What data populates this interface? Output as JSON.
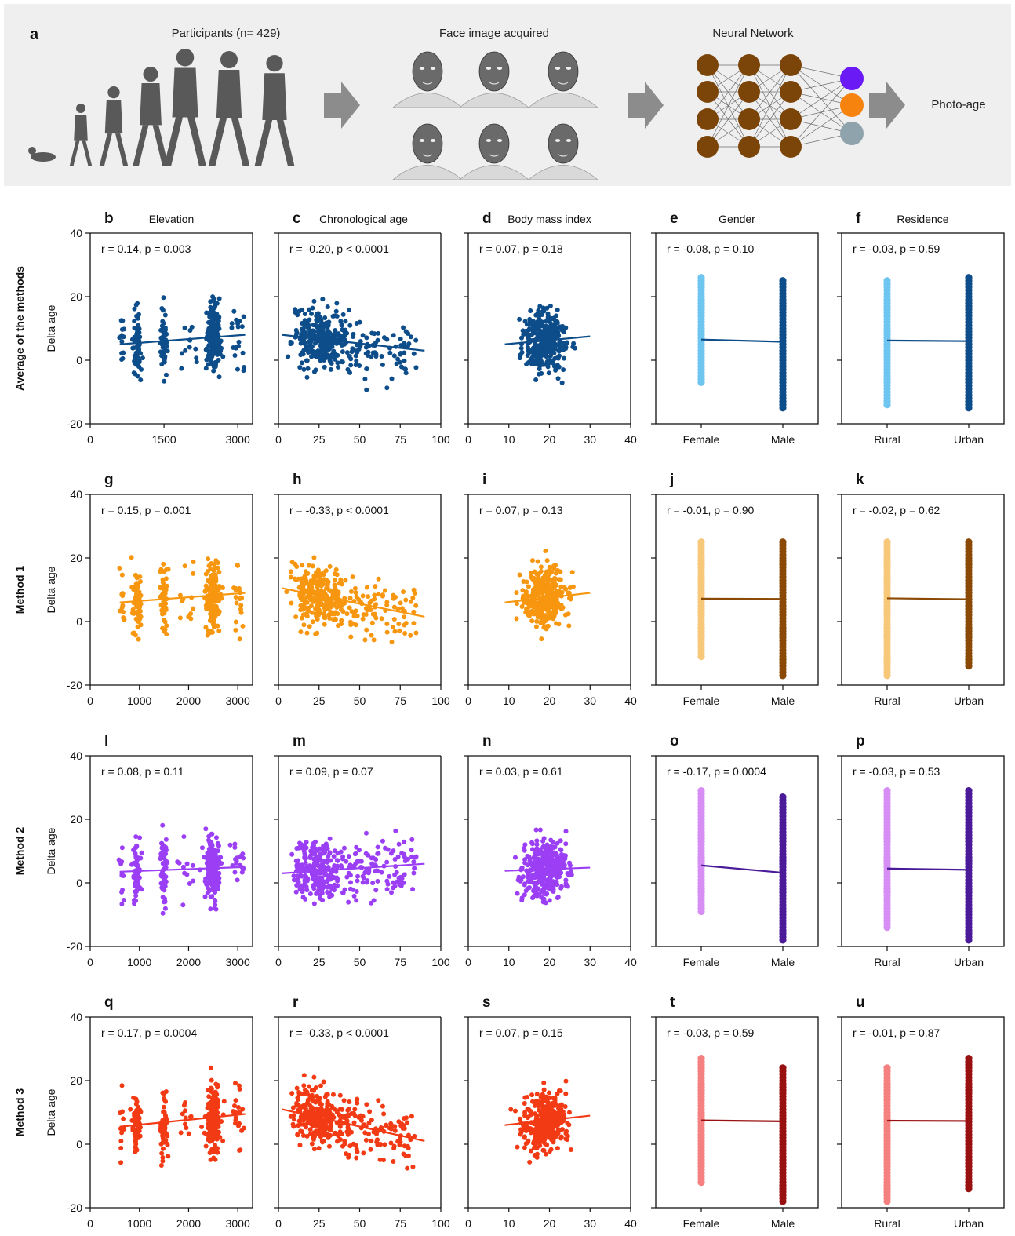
{
  "header": {
    "panel_letter": "a",
    "participants_label": "Participants (n= 429)",
    "faces_label": "Face image acquired",
    "network_label": "Neural Network",
    "output_label": "Photo-age"
  },
  "columns": [
    {
      "key": "elevation",
      "title": "Elevation"
    },
    {
      "key": "age",
      "title": "Chronological age"
    },
    {
      "key": "bmi",
      "title": "Body mass index"
    },
    {
      "key": "gender",
      "title": "Gender"
    },
    {
      "key": "residence",
      "title": "Residence"
    }
  ],
  "y_axis": {
    "label": "Delta age",
    "ticks": [
      "40",
      "20",
      "0",
      "-20"
    ],
    "ylim": [
      -20,
      40
    ]
  },
  "rows": [
    {
      "label": "Average of the methods",
      "color": "#0d4d8a",
      "light_color": "#6ec6f0",
      "dark_color": "#0d4d8a"
    },
    {
      "label": "Method 1",
      "color": "#f7960f",
      "light_color": "#f7c87a",
      "dark_color": "#8a4a05"
    },
    {
      "label": "Method 2",
      "color": "#9b3ff5",
      "light_color": "#d68ef5",
      "dark_color": "#4a1a99"
    },
    {
      "label": "Method 3",
      "color": "#f23a14",
      "light_color": "#f58080",
      "dark_color": "#991010"
    }
  ],
  "chart_data": [
    {
      "type": "scatter",
      "row": 0,
      "col": 0,
      "letter": "b",
      "stat": "r = 0.14, p = 0.003",
      "xlim": [
        0,
        3300
      ],
      "xticks": [
        {
          "v": 0,
          "t": "0"
        },
        {
          "v": 1500,
          "t": "1500"
        },
        {
          "v": 3000,
          "t": "3000"
        }
      ],
      "trend": [
        [
          600,
          5.0
        ],
        [
          3150,
          8.0
        ]
      ]
    },
    {
      "type": "scatter",
      "row": 0,
      "col": 1,
      "letter": "c",
      "stat": "r = -0.20, p < 0.0001",
      "xlim": [
        0,
        100
      ],
      "xticks": [
        {
          "v": 0,
          "t": "0"
        },
        {
          "v": 25,
          "t": "25"
        },
        {
          "v": 50,
          "t": "50"
        },
        {
          "v": 75,
          "t": "75"
        },
        {
          "v": 100,
          "t": "100"
        }
      ],
      "trend": [
        [
          2,
          8.0
        ],
        [
          90,
          3.0
        ]
      ]
    },
    {
      "type": "scatter",
      "row": 0,
      "col": 2,
      "letter": "d",
      "stat": "r = 0.07, p = 0.18",
      "xlim": [
        0,
        40
      ],
      "xticks": [
        {
          "v": 0,
          "t": "0"
        },
        {
          "v": 10,
          "t": "10"
        },
        {
          "v": 20,
          "t": "20"
        },
        {
          "v": 30,
          "t": "30"
        },
        {
          "v": 40,
          "t": "40"
        }
      ],
      "trend": [
        [
          9,
          5.0
        ],
        [
          30,
          7.5
        ]
      ]
    },
    {
      "type": "categorical",
      "row": 0,
      "col": 3,
      "letter": "e",
      "stat": "r = -0.08, p = 0.10",
      "categories": [
        "Female",
        "Male"
      ],
      "means": [
        6.5,
        5.8
      ],
      "ranges": [
        [
          -7,
          26
        ],
        [
          -15,
          25
        ]
      ]
    },
    {
      "type": "categorical",
      "row": 0,
      "col": 4,
      "letter": "f",
      "stat": "r = -0.03, p = 0.59",
      "categories": [
        "Rural",
        "Urban"
      ],
      "means": [
        6.2,
        6.0
      ],
      "ranges": [
        [
          -14,
          25
        ],
        [
          -15,
          26
        ]
      ]
    },
    {
      "type": "scatter",
      "row": 1,
      "col": 0,
      "letter": "g",
      "stat": "r = 0.15, p = 0.001",
      "xlim": [
        0,
        3300
      ],
      "xticks": [
        {
          "v": 0,
          "t": "0"
        },
        {
          "v": 1000,
          "t": "1000"
        },
        {
          "v": 2000,
          "t": "2000"
        },
        {
          "v": 3000,
          "t": "3000"
        }
      ],
      "trend": [
        [
          600,
          6.0
        ],
        [
          3150,
          9.0
        ]
      ]
    },
    {
      "type": "scatter",
      "row": 1,
      "col": 1,
      "letter": "h",
      "stat": "r = -0.33, p < 0.0001",
      "xlim": [
        0,
        100
      ],
      "xticks": [
        {
          "v": 0,
          "t": "0"
        },
        {
          "v": 25,
          "t": "25"
        },
        {
          "v": 50,
          "t": "50"
        },
        {
          "v": 75,
          "t": "75"
        },
        {
          "v": 100,
          "t": "100"
        }
      ],
      "trend": [
        [
          2,
          10.5
        ],
        [
          90,
          1.5
        ]
      ]
    },
    {
      "type": "scatter",
      "row": 1,
      "col": 2,
      "letter": "i",
      "stat": "r = 0.07, p = 0.13",
      "xlim": [
        0,
        40
      ],
      "xticks": [
        {
          "v": 0,
          "t": "0"
        },
        {
          "v": 10,
          "t": "10"
        },
        {
          "v": 20,
          "t": "20"
        },
        {
          "v": 30,
          "t": "30"
        },
        {
          "v": 40,
          "t": "40"
        }
      ],
      "trend": [
        [
          9,
          6.0
        ],
        [
          30,
          9.0
        ]
      ]
    },
    {
      "type": "categorical",
      "row": 1,
      "col": 3,
      "letter": "j",
      "stat": "r = -0.01, p = 0.90",
      "categories": [
        "Female",
        "Male"
      ],
      "means": [
        7.2,
        7.1
      ],
      "ranges": [
        [
          -11,
          25
        ],
        [
          -17,
          25
        ]
      ]
    },
    {
      "type": "categorical",
      "row": 1,
      "col": 4,
      "letter": "k",
      "stat": "r = -0.02, p = 0.62",
      "categories": [
        "Rural",
        "Urban"
      ],
      "means": [
        7.3,
        7.0
      ],
      "ranges": [
        [
          -17,
          25
        ],
        [
          -14,
          25
        ]
      ]
    },
    {
      "type": "scatter",
      "row": 2,
      "col": 0,
      "letter": "l",
      "stat": "r = 0.08, p = 0.11",
      "xlim": [
        0,
        3300
      ],
      "xticks": [
        {
          "v": 0,
          "t": "0"
        },
        {
          "v": 1000,
          "t": "1000"
        },
        {
          "v": 2000,
          "t": "2000"
        },
        {
          "v": 3000,
          "t": "3000"
        }
      ],
      "trend": [
        [
          600,
          3.5
        ],
        [
          3150,
          5.0
        ]
      ]
    },
    {
      "type": "scatter",
      "row": 2,
      "col": 1,
      "letter": "m",
      "stat": "r = 0.09, p = 0.07",
      "xlim": [
        0,
        100
      ],
      "xticks": [
        {
          "v": 0,
          "t": "0"
        },
        {
          "v": 25,
          "t": "25"
        },
        {
          "v": 50,
          "t": "50"
        },
        {
          "v": 75,
          "t": "75"
        },
        {
          "v": 100,
          "t": "100"
        }
      ],
      "trend": [
        [
          2,
          3.0
        ],
        [
          90,
          6.0
        ]
      ]
    },
    {
      "type": "scatter",
      "row": 2,
      "col": 2,
      "letter": "n",
      "stat": "r = 0.03, p = 0.61",
      "xlim": [
        0,
        40
      ],
      "xticks": [
        {
          "v": 0,
          "t": "0"
        },
        {
          "v": 10,
          "t": "10"
        },
        {
          "v": 20,
          "t": "20"
        },
        {
          "v": 30,
          "t": "30"
        },
        {
          "v": 40,
          "t": "40"
        }
      ],
      "trend": [
        [
          9,
          3.8
        ],
        [
          30,
          4.8
        ]
      ]
    },
    {
      "type": "categorical",
      "row": 2,
      "col": 3,
      "letter": "o",
      "stat": "r = -0.17, p = 0.0004",
      "categories": [
        "Female",
        "Male"
      ],
      "means": [
        5.5,
        3.2
      ],
      "ranges": [
        [
          -9,
          29
        ],
        [
          -18,
          27
        ]
      ]
    },
    {
      "type": "categorical",
      "row": 2,
      "col": 4,
      "letter": "p",
      "stat": "r = -0.03, p = 0.53",
      "categories": [
        "Rural",
        "Urban"
      ],
      "means": [
        4.5,
        4.1
      ],
      "ranges": [
        [
          -14,
          29
        ],
        [
          -18,
          29
        ]
      ]
    },
    {
      "type": "scatter",
      "row": 3,
      "col": 0,
      "letter": "q",
      "stat": "r = 0.17, p = 0.0004",
      "xlim": [
        0,
        3300
      ],
      "xticks": [
        {
          "v": 0,
          "t": "0"
        },
        {
          "v": 1000,
          "t": "1000"
        },
        {
          "v": 2000,
          "t": "2000"
        },
        {
          "v": 3000,
          "t": "3000"
        }
      ],
      "trend": [
        [
          600,
          5.5
        ],
        [
          3150,
          9.5
        ]
      ]
    },
    {
      "type": "scatter",
      "row": 3,
      "col": 1,
      "letter": "r",
      "stat": "r = -0.33, p < 0.0001",
      "xlim": [
        0,
        100
      ],
      "xticks": [
        {
          "v": 0,
          "t": "0"
        },
        {
          "v": 25,
          "t": "25"
        },
        {
          "v": 50,
          "t": "50"
        },
        {
          "v": 75,
          "t": "75"
        },
        {
          "v": 100,
          "t": "100"
        }
      ],
      "trend": [
        [
          2,
          11.0
        ],
        [
          90,
          1.0
        ]
      ]
    },
    {
      "type": "scatter",
      "row": 3,
      "col": 2,
      "letter": "s",
      "stat": "r = 0.07, p = 0.15",
      "xlim": [
        0,
        40
      ],
      "xticks": [
        {
          "v": 0,
          "t": "0"
        },
        {
          "v": 10,
          "t": "10"
        },
        {
          "v": 20,
          "t": "20"
        },
        {
          "v": 30,
          "t": "30"
        },
        {
          "v": 40,
          "t": "40"
        }
      ],
      "trend": [
        [
          9,
          6.0
        ],
        [
          30,
          9.0
        ]
      ]
    },
    {
      "type": "categorical",
      "row": 3,
      "col": 3,
      "letter": "t",
      "stat": "r = -0.03, p = 0.59",
      "categories": [
        "Female",
        "Male"
      ],
      "means": [
        7.5,
        7.2
      ],
      "ranges": [
        [
          -12,
          27
        ],
        [
          -18,
          24
        ]
      ]
    },
    {
      "type": "categorical",
      "row": 3,
      "col": 4,
      "letter": "u",
      "stat": "r = -0.01, p = 0.87",
      "categories": [
        "Rural",
        "Urban"
      ],
      "means": [
        7.4,
        7.3
      ],
      "ranges": [
        [
          -18,
          24
        ],
        [
          -14,
          27
        ]
      ]
    }
  ]
}
